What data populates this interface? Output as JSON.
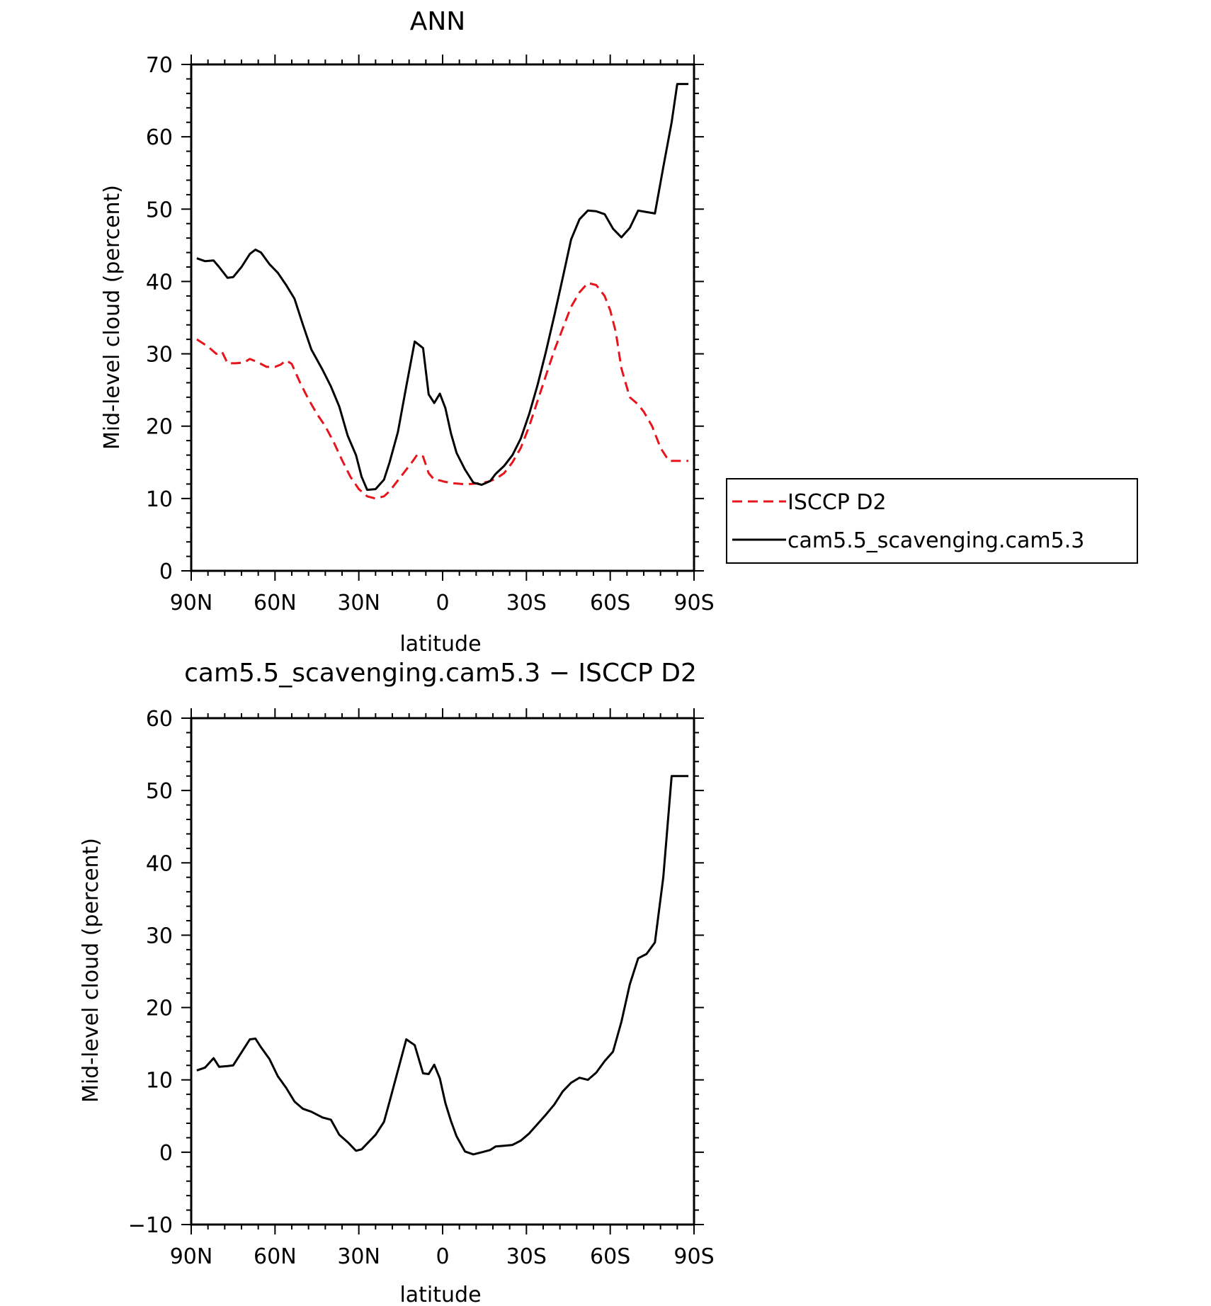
{
  "chart_data": [
    {
      "type": "line",
      "title": "ANN",
      "xlabel": "latitude",
      "ylabel": "Mid-level cloud (percent)",
      "xlim": [
        90,
        -90
      ],
      "ylim": [
        0,
        70
      ],
      "x_ticks": [
        90,
        60,
        30,
        0,
        -30,
        -60,
        -90
      ],
      "x_tick_labels": [
        "90N",
        "60N",
        "30N",
        "0",
        "30S",
        "60S",
        "90S"
      ],
      "y_ticks": [
        0,
        10,
        20,
        30,
        40,
        50,
        60,
        70
      ],
      "y_tick_labels": [
        "0",
        "10",
        "20",
        "30",
        "40",
        "50",
        "60",
        "70"
      ],
      "legend_position": "right",
      "series": [
        {
          "name": "ISCCP D2",
          "color": "#e8141b",
          "dash": "dashed",
          "x": [
            88,
            84,
            81,
            79,
            77,
            74,
            71,
            69,
            66,
            63,
            60,
            58,
            56,
            54,
            51,
            48,
            45,
            42,
            39,
            36,
            33,
            30,
            27,
            24,
            21,
            19,
            17,
            14,
            11,
            9,
            7,
            5,
            3,
            1,
            -1,
            -4,
            -7,
            -10,
            -13,
            -16,
            -19,
            -22,
            -25,
            -28,
            -31,
            -34,
            -37,
            -40,
            -43,
            -46,
            -49,
            -52,
            -55,
            -58,
            -60,
            -62,
            -64,
            -67,
            -70,
            -72,
            -75,
            -78,
            -81,
            -83,
            -86,
            -88
          ],
          "y": [
            32,
            31,
            30,
            30.3,
            28.7,
            28.7,
            28.8,
            29.3,
            28.8,
            28.2,
            28.2,
            28.5,
            29.1,
            28.6,
            26,
            23.7,
            21.7,
            20,
            17.8,
            15.3,
            13,
            11.3,
            10.3,
            10,
            10.3,
            11,
            12,
            13.5,
            15,
            16.1,
            15.8,
            13.5,
            12.6,
            12.5,
            12.3,
            12.1,
            12,
            12,
            12.1,
            12.3,
            12.7,
            13.5,
            15,
            17,
            20,
            23.5,
            27,
            30.5,
            33.5,
            36.5,
            38.5,
            39.8,
            39.5,
            38,
            36,
            33,
            28,
            24,
            23,
            22,
            20,
            17,
            15.2,
            15.2,
            15.2,
            15.2
          ]
        },
        {
          "name": "cam5.5_scavenging.cam5.3",
          "color": "#000000",
          "dash": "solid",
          "x": [
            88,
            85,
            82,
            80,
            77,
            75,
            72,
            69,
            67,
            65,
            62,
            59,
            56,
            53,
            50,
            47,
            43,
            40,
            37,
            34,
            31,
            29,
            27,
            24,
            21,
            19,
            16,
            13,
            10,
            7,
            5,
            3,
            1,
            -1,
            -3,
            -5,
            -8,
            -11,
            -14,
            -17,
            -19,
            -22,
            -25,
            -28,
            -31,
            -34,
            -37,
            -40,
            -43,
            -46,
            -49,
            -52,
            -55,
            -58,
            -61,
            -64,
            -67,
            -70,
            -73,
            -76,
            -79,
            -82,
            -84,
            -86,
            -88
          ],
          "y": [
            43.2,
            42.8,
            42.9,
            42,
            40.5,
            40.6,
            42,
            43.8,
            44.4,
            44,
            42.4,
            41.2,
            39.5,
            37.6,
            34,
            30.6,
            27.8,
            25.5,
            22.7,
            18.7,
            16,
            13,
            11.2,
            11.3,
            12.6,
            15,
            19.2,
            25.5,
            31.7,
            30.8,
            24.4,
            23.2,
            24.5,
            22.5,
            19,
            16.3,
            14,
            12.2,
            11.9,
            12.4,
            13.4,
            14.5,
            16,
            18.3,
            21.7,
            25.7,
            30.3,
            35.3,
            40.5,
            45.8,
            48.6,
            49.8,
            49.7,
            49.3,
            47.3,
            46.1,
            47.4,
            49.8,
            49.6,
            49.4,
            55.8,
            62,
            67.3,
            67.3,
            67.3
          ]
        }
      ]
    },
    {
      "type": "line",
      "title": "cam5.5_scavenging.cam5.3 − ISCCP D2",
      "xlabel": "latitude",
      "ylabel": "Mid-level cloud (percent)",
      "xlim": [
        90,
        -90
      ],
      "ylim": [
        -10,
        60
      ],
      "x_ticks": [
        90,
        60,
        30,
        0,
        -30,
        -60,
        -90
      ],
      "x_tick_labels": [
        "90N",
        "60N",
        "30N",
        "0",
        "30S",
        "60S",
        "90S"
      ],
      "y_ticks": [
        -10,
        0,
        10,
        20,
        30,
        40,
        50,
        60
      ],
      "y_tick_labels": [
        "−10",
        "0",
        "10",
        "20",
        "30",
        "40",
        "50",
        "60"
      ],
      "series": [
        {
          "color": "#000000",
          "dash": "solid",
          "x": [
            88,
            85,
            82,
            80,
            77,
            75,
            72,
            69,
            67,
            65,
            62,
            59,
            56,
            53,
            50,
            47,
            43,
            40,
            37,
            34,
            31,
            29,
            27,
            24,
            21,
            19,
            16,
            13,
            10,
            7,
            5,
            3,
            1,
            -1,
            -3,
            -5,
            -8,
            -11,
            -14,
            -17,
            -19,
            -22,
            -25,
            -28,
            -31,
            -34,
            -37,
            -40,
            -43,
            -46,
            -49,
            -52,
            -55,
            -58,
            -61,
            -64,
            -67,
            -70,
            -73,
            -76,
            -79,
            -82,
            -84,
            -86,
            -88
          ],
          "y": [
            11.3,
            11.7,
            13,
            11.8,
            11.9,
            12,
            13.8,
            15.6,
            15.7,
            14.5,
            12.9,
            10.5,
            8.9,
            7,
            6,
            5.6,
            4.8,
            4.5,
            2.4,
            1.4,
            0.2,
            0.4,
            1.2,
            2.4,
            4.2,
            7,
            11.3,
            15.6,
            14.8,
            10.9,
            10.8,
            12.1,
            10.2,
            6.8,
            4.3,
            2.2,
            0.1,
            -0.3,
            0,
            0.3,
            0.8,
            0.9,
            1,
            1.6,
            2.6,
            3.9,
            5.2,
            6.6,
            8.4,
            9.6,
            10.3,
            10,
            11,
            12.6,
            13.9,
            18,
            23.2,
            26.8,
            27.4,
            29,
            38,
            52,
            52,
            52,
            52
          ]
        }
      ]
    }
  ]
}
